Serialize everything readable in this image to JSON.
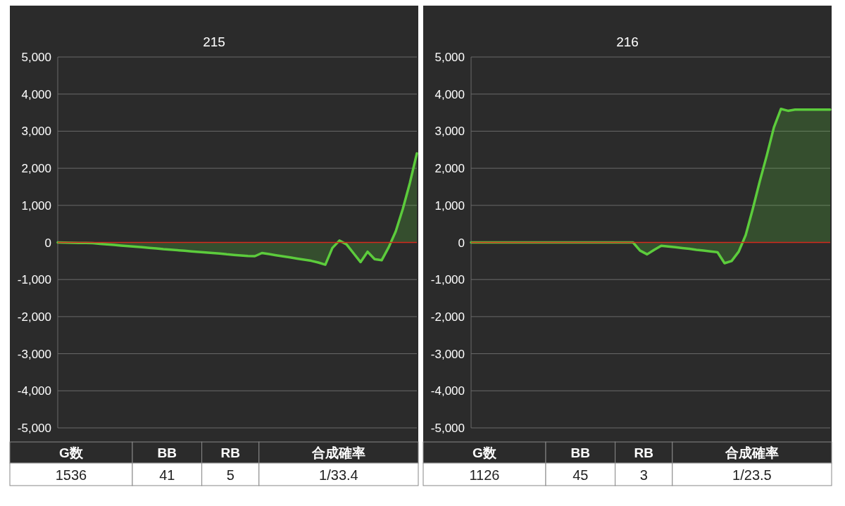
{
  "chart_data": [
    {
      "type": "area",
      "title": "215",
      "categories": [
        null,
        null,
        null,
        null,
        null,
        null,
        null,
        null,
        null,
        null,
        null,
        null,
        null,
        null,
        null,
        null,
        null,
        null,
        null,
        null,
        null,
        null,
        null,
        null,
        null,
        null,
        null,
        null,
        null,
        null,
        null,
        null,
        null,
        null,
        null,
        null,
        null,
        null,
        null,
        null,
        null,
        null,
        null,
        null,
        null,
        null,
        null,
        null,
        null,
        null,
        null,
        null
      ],
      "series": [
        {
          "color": "#5ccc3c",
          "values": [
            0,
            -5,
            -10,
            -12,
            -15,
            -20,
            -36,
            -52,
            -68,
            -84,
            -100,
            -115,
            -130,
            -145,
            -160,
            -180,
            -195,
            -210,
            -225,
            -240,
            -255,
            -270,
            -285,
            -300,
            -320,
            -335,
            -350,
            -365,
            -370,
            -285,
            -315,
            -345,
            -375,
            -405,
            -435,
            -465,
            -495,
            -540,
            -600,
            -150,
            50,
            -50,
            -290,
            -530,
            -250,
            -450,
            -480,
            -130,
            300,
            900,
            1600,
            2400
          ]
        }
      ],
      "ylim": [
        -5000,
        5000
      ],
      "yticks": [
        {
          "value": -5000,
          "label": "-5,000"
        },
        {
          "value": -4000,
          "label": "-4,000"
        },
        {
          "value": -3000,
          "label": "-3,000"
        },
        {
          "value": -2000,
          "label": "-2,000"
        },
        {
          "value": -1000,
          "label": "-1,000"
        },
        0,
        {
          "value": 1000,
          "label": "1,000"
        },
        {
          "value": 2000,
          "label": "2,000"
        },
        {
          "value": 3000,
          "label": "3,000"
        },
        {
          "value": 4000,
          "label": "4,000"
        },
        {
          "value": 5000,
          "label": "5,000"
        }
      ],
      "grid": "y",
      "tick_labels": "y",
      "ref_lines": [
        {
          "axis": "y",
          "value": 0,
          "color": "#d42a1e"
        }
      ],
      "annotations": [
        "G数",
        "BB",
        "RB",
        "合成確率",
        "1536",
        "41",
        "5",
        "1/33.4"
      ]
    },
    {
      "type": "area",
      "title": "216",
      "categories": [
        null,
        null,
        null,
        null,
        null,
        null,
        null,
        null,
        null,
        null,
        null,
        null,
        null,
        null,
        null,
        null,
        null,
        null,
        null,
        null,
        null,
        null,
        null,
        null,
        null,
        null,
        null,
        null,
        null,
        null,
        null,
        null,
        null,
        null,
        null,
        null,
        null,
        null,
        null,
        null,
        null,
        null,
        null,
        null,
        null,
        null,
        null,
        null,
        null,
        null,
        null,
        null
      ],
      "series": [
        {
          "color": "#5ccc3c",
          "values": [
            0,
            0,
            0,
            0,
            0,
            0,
            0,
            0,
            0,
            0,
            0,
            0,
            0,
            0,
            0,
            0,
            0,
            0,
            0,
            0,
            0,
            0,
            0,
            0,
            -220,
            -320,
            -200,
            -90,
            -110,
            -130,
            -150,
            -170,
            -200,
            -220,
            -240,
            -265,
            -560,
            -500,
            -250,
            200,
            900,
            1650,
            2350,
            3100,
            3600,
            3550,
            3580,
            3580,
            3580,
            3580,
            3580,
            3580
          ]
        }
      ],
      "ylim": [
        -5000,
        5000
      ],
      "yticks": [
        {
          "value": -5000,
          "label": "-5,000"
        },
        {
          "value": -4000,
          "label": "-4,000"
        },
        {
          "value": -3000,
          "label": "-3,000"
        },
        {
          "value": -2000,
          "label": "-2,000"
        },
        {
          "value": -1000,
          "label": "-1,000"
        },
        0,
        {
          "value": 1000,
          "label": "1,000"
        },
        {
          "value": 2000,
          "label": "2,000"
        },
        {
          "value": 3000,
          "label": "3,000"
        },
        {
          "value": 4000,
          "label": "4,000"
        },
        {
          "value": 5000,
          "label": "5,000"
        }
      ],
      "grid": "y",
      "tick_labels": "y",
      "ref_lines": [
        {
          "axis": "y",
          "value": 0,
          "color": "#d42a1e"
        }
      ],
      "annotations": [
        "G数",
        "BB",
        "RB",
        "合成確率",
        "1126",
        "45",
        "3",
        "1/23.5"
      ]
    }
  ]
}
